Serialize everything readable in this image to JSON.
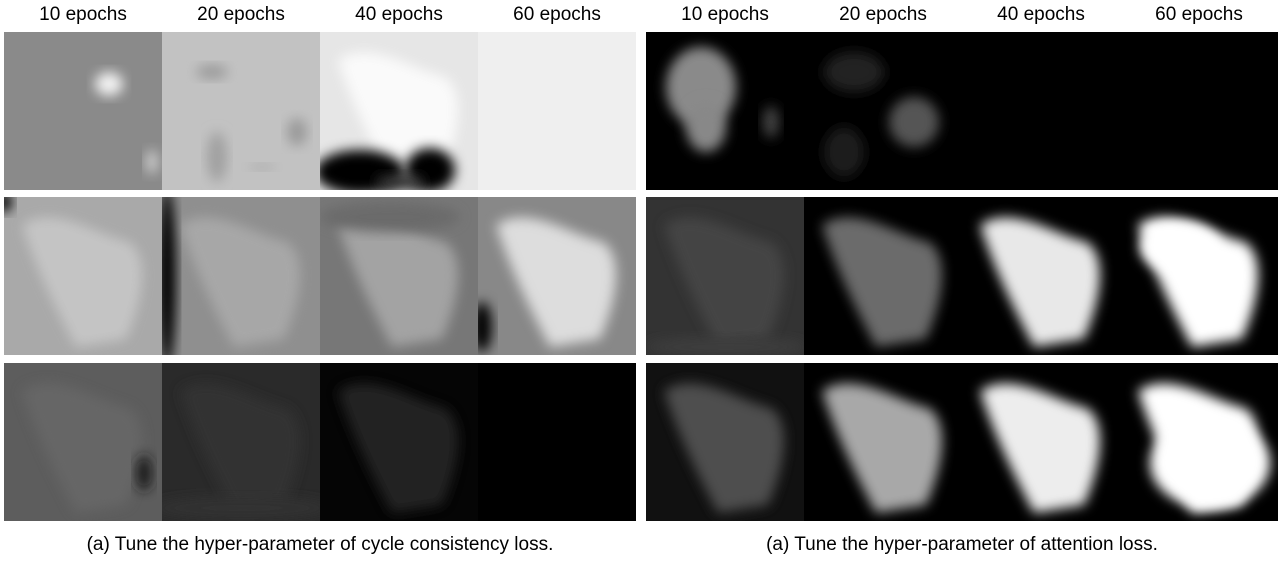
{
  "left": {
    "columns": [
      "10 epochs",
      "20 epochs",
      "40 epochs",
      "60 epochs"
    ],
    "caption": "(a) Tune the hyper-parameter of cycle consistency loss."
  },
  "right": {
    "columns": [
      "10 epochs",
      "20 epochs",
      "40 epochs",
      "60 epochs"
    ],
    "caption": "(a) Tune the hyper-parameter of attention loss."
  }
}
